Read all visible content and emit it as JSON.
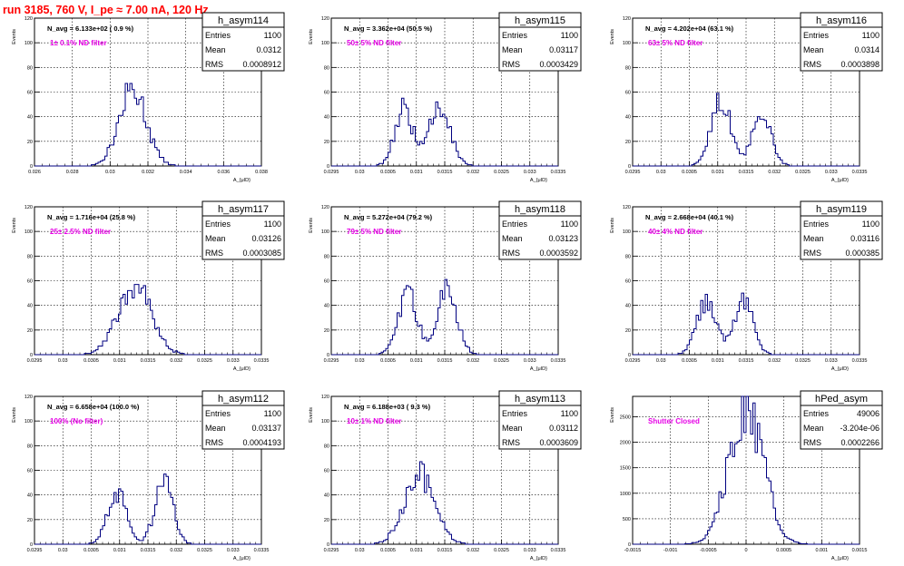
{
  "run_title": "run 3185,   760 V, I_pe ≈ 7.00 nA, 120 Hz",
  "chart_data": [
    {
      "type": "histogram",
      "hist_name": "h_asym114",
      "xlabel": "A_{μID}",
      "ylabel": "Events",
      "xlim": [
        0.026,
        0.038
      ],
      "ylim": [
        0,
        120
      ],
      "xticks": [
        "0.026",
        "0.028",
        "0.03",
        "0.032",
        "0.034",
        "0.036",
        "0.038"
      ],
      "yticks": [
        "0",
        "20",
        "40",
        "60",
        "80",
        "100",
        "120"
      ],
      "grid": true,
      "n_avg_text": "N_avg = 6.133e+02 ( 0.9 %)",
      "filter_text": "1± 0.1% ND filter",
      "stats": [
        [
          "Entries",
          "1100"
        ],
        [
          "Mean",
          "0.0312"
        ],
        [
          "RMS",
          "0.0008912"
        ]
      ],
      "stat_mean": 0.0312,
      "stat_rms": 0.0008912,
      "peaks": [
        [
          0.0312,
          62,
          0.00072
        ]
      ]
    },
    {
      "type": "histogram",
      "hist_name": "h_asym115",
      "xlabel": "A_{μID}",
      "ylabel": "Events",
      "xlim": [
        0.0295,
        0.0335
      ],
      "ylim": [
        0,
        120
      ],
      "xticks": [
        "0.0295",
        "0.03",
        "0.0305",
        "0.031",
        "0.0315",
        "0.032",
        "0.0325",
        "0.033",
        "0.0335"
      ],
      "yticks": [
        "0",
        "20",
        "40",
        "60",
        "80",
        "100",
        "120"
      ],
      "grid": true,
      "n_avg_text": "N_avg = 3.362e+04 (50.5 %)",
      "filter_text": "50± 5% ND filter",
      "stats": [
        [
          "Entries",
          "1100"
        ],
        [
          "Mean",
          "0.03117"
        ],
        [
          "RMS",
          "0.0003429"
        ]
      ],
      "stat_mean": 0.03117,
      "stat_rms": 0.0003429,
      "peaks": [
        [
          0.03078,
          46,
          0.00016
        ],
        [
          0.03142,
          51,
          0.00018
        ]
      ]
    },
    {
      "type": "histogram",
      "hist_name": "h_asym116",
      "xlabel": "A_{μID}",
      "ylabel": "Events",
      "xlim": [
        0.0295,
        0.0335
      ],
      "ylim": [
        0,
        120
      ],
      "xticks": [
        "0.0295",
        "0.03",
        "0.0305",
        "0.031",
        "0.0315",
        "0.032",
        "0.0325",
        "0.033",
        "0.0335"
      ],
      "yticks": [
        "0",
        "20",
        "40",
        "60",
        "80",
        "100",
        "120"
      ],
      "grid": true,
      "n_avg_text": "N_avg = 4.202e+04 (63.1 %)",
      "filter_text": "63± 5% ND filter",
      "stats": [
        [
          "Entries",
          "1100"
        ],
        [
          "Mean",
          "0.0314"
        ],
        [
          "RMS",
          "0.0003898"
        ]
      ],
      "stat_mean": 0.0314,
      "stat_rms": 0.0003898,
      "peaks": [
        [
          0.03105,
          55,
          0.00017
        ],
        [
          0.03178,
          45,
          0.00016
        ]
      ]
    },
    {
      "type": "histogram",
      "hist_name": "h_asym117",
      "xlabel": "A_{μID}",
      "ylabel": "Events",
      "xlim": [
        0.0295,
        0.0335
      ],
      "ylim": [
        0,
        120
      ],
      "xticks": [
        "0.0295",
        "0.03",
        "0.0305",
        "0.031",
        "0.0315",
        "0.032",
        "0.0325",
        "0.033",
        "0.0335"
      ],
      "yticks": [
        "0",
        "20",
        "40",
        "60",
        "80",
        "100",
        "120"
      ],
      "grid": true,
      "n_avg_text": "N_avg = 1.716e+04 (25.8 %)",
      "filter_text": "25± 2.5% ND filter",
      "stats": [
        [
          "Entries",
          "1100"
        ],
        [
          "Mean",
          "0.03126"
        ],
        [
          "RMS",
          "0.0003085"
        ]
      ],
      "stat_mean": 0.03126,
      "stat_rms": 0.0003085,
      "peaks": [
        [
          0.03126,
          57,
          0.00029
        ]
      ]
    },
    {
      "type": "histogram",
      "hist_name": "h_asym118",
      "xlabel": "A_{μID}",
      "ylabel": "Events",
      "xlim": [
        0.0295,
        0.0335
      ],
      "ylim": [
        0,
        120
      ],
      "xticks": [
        "0.0295",
        "0.03",
        "0.0305",
        "0.031",
        "0.0315",
        "0.032",
        "0.0325",
        "0.033",
        "0.0335"
      ],
      "yticks": [
        "0",
        "20",
        "40",
        "60",
        "80",
        "100",
        "120"
      ],
      "grid": true,
      "n_avg_text": "N_avg = 5.272e+04 (79.2 %)",
      "filter_text": "79± 5% ND filter",
      "stats": [
        [
          "Entries",
          "1100"
        ],
        [
          "Mean",
          "0.03123"
        ],
        [
          "RMS",
          "0.0003592"
        ]
      ],
      "stat_mean": 0.03123,
      "stat_rms": 0.0003592,
      "peaks": [
        [
          0.03085,
          48,
          0.00017
        ],
        [
          0.03155,
          53,
          0.00017
        ]
      ]
    },
    {
      "type": "histogram",
      "hist_name": "h_asym119",
      "xlabel": "A_{μID}",
      "ylabel": "Events",
      "xlim": [
        0.0295,
        0.0335
      ],
      "ylim": [
        0,
        120
      ],
      "xticks": [
        "0.0295",
        "0.03",
        "0.0305",
        "0.031",
        "0.0315",
        "0.032",
        "0.0325",
        "0.033",
        "0.0335"
      ],
      "yticks": [
        "0",
        "20",
        "40",
        "60",
        "80",
        "100",
        "120"
      ],
      "grid": true,
      "n_avg_text": "N_avg = 2.668e+04 (40.1 %)",
      "filter_text": "40± 4% ND filter",
      "stats": [
        [
          "Entries",
          "1100"
        ],
        [
          "Mean",
          "0.03116"
        ],
        [
          "RMS",
          "0.000385"
        ]
      ],
      "stat_mean": 0.03116,
      "stat_rms": 0.000385,
      "peaks": [
        [
          0.0308,
          41,
          0.00017
        ],
        [
          0.03145,
          45,
          0.00017
        ]
      ]
    },
    {
      "type": "histogram",
      "hist_name": "h_asym112",
      "xlabel": "A_{μID}",
      "ylabel": "Events",
      "xlim": [
        0.0295,
        0.0335
      ],
      "ylim": [
        0,
        120
      ],
      "xticks": [
        "0.0295",
        "0.03",
        "0.0305",
        "0.031",
        "0.0315",
        "0.032",
        "0.0325",
        "0.033",
        "0.0335"
      ],
      "yticks": [
        "0",
        "20",
        "40",
        "60",
        "80",
        "100",
        "120"
      ],
      "grid": true,
      "n_avg_text": "N_avg = 6.658e+04 (100.0 %)",
      "filter_text": "100% (No filter)",
      "stats": [
        [
          "Entries",
          "1100"
        ],
        [
          "Mean",
          "0.03137"
        ],
        [
          "RMS",
          "0.0004193"
        ]
      ],
      "stat_mean": 0.03137,
      "stat_rms": 0.0004193,
      "peaks": [
        [
          0.03095,
          44,
          0.00016
        ],
        [
          0.03178,
          50,
          0.00016
        ]
      ]
    },
    {
      "type": "histogram",
      "hist_name": "h_asym113",
      "xlabel": "A_{μID}",
      "ylabel": "Events",
      "xlim": [
        0.0295,
        0.0335
      ],
      "ylim": [
        0,
        120
      ],
      "xticks": [
        "0.0295",
        "0.03",
        "0.0305",
        "0.031",
        "0.0315",
        "0.032",
        "0.0325",
        "0.033",
        "0.0335"
      ],
      "yticks": [
        "0",
        "20",
        "40",
        "60",
        "80",
        "100",
        "120"
      ],
      "grid": true,
      "n_avg_text": "N_avg = 6.188e+03 ( 9.3 %)",
      "filter_text": "10± 1% ND filter",
      "stats": [
        [
          "Entries",
          "1100"
        ],
        [
          "Mean",
          "0.03112"
        ],
        [
          "RMS",
          "0.0003609"
        ]
      ],
      "stat_mean": 0.03112,
      "stat_rms": 0.0003609,
      "peaks": [
        [
          0.03105,
          58,
          0.00026
        ]
      ]
    },
    {
      "type": "histogram",
      "hist_name": "hPed_asym",
      "xlabel": "A_{μID}",
      "ylabel": "Events",
      "xlim": [
        -0.0015,
        0.0015
      ],
      "ylim": [
        0,
        2900
      ],
      "xticks": [
        "-0.0015",
        "-0.001",
        "-0.0005",
        "0",
        "0.0005",
        "0.001",
        "0.0015"
      ],
      "yticks": [
        "0",
        "500",
        "1000",
        "1500",
        "2000",
        "2500"
      ],
      "grid": true,
      "n_avg_text": "",
      "filter_text": "Shutter Closed",
      "stats": [
        [
          "Entries",
          "49006"
        ],
        [
          "Mean",
          "-3.204e-06"
        ],
        [
          "RMS",
          "0.0002266"
        ]
      ],
      "stat_mean": -3.204e-06,
      "stat_rms": 0.0002266,
      "peaks": [
        [
          0.0,
          2700,
          0.0002266
        ]
      ]
    }
  ]
}
